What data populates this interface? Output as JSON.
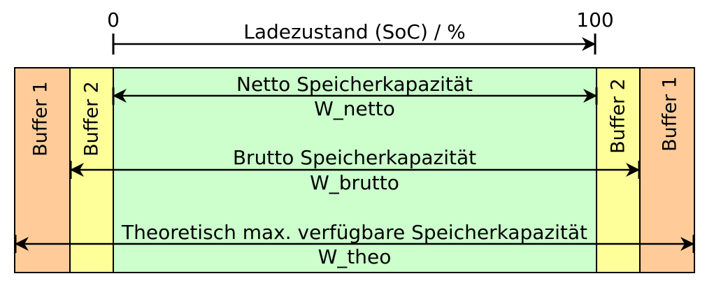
{
  "soc_axis": {
    "min_label": "0",
    "max_label": "100",
    "title": "Ladezustand (SoC) / %"
  },
  "zones": {
    "buffer1_left": "Buffer 1",
    "buffer2_left": "Buffer 2",
    "buffer2_right": "Buffer 2",
    "buffer1_right": "Buffer 1"
  },
  "capacities": {
    "netto": {
      "label": "Netto Speicherkapazität",
      "symbol": "W_netto"
    },
    "brutto": {
      "label": "Brutto Speicherkapazität",
      "symbol": "W_brutto"
    },
    "theo": {
      "label": "Theoretisch max. verfügbare Speicherkapazität",
      "symbol": "W_theo"
    }
  },
  "colors": {
    "buffer1": "#ffcc99",
    "buffer2": "#ffff99",
    "core": "#ccffcc",
    "stroke": "#000000"
  }
}
